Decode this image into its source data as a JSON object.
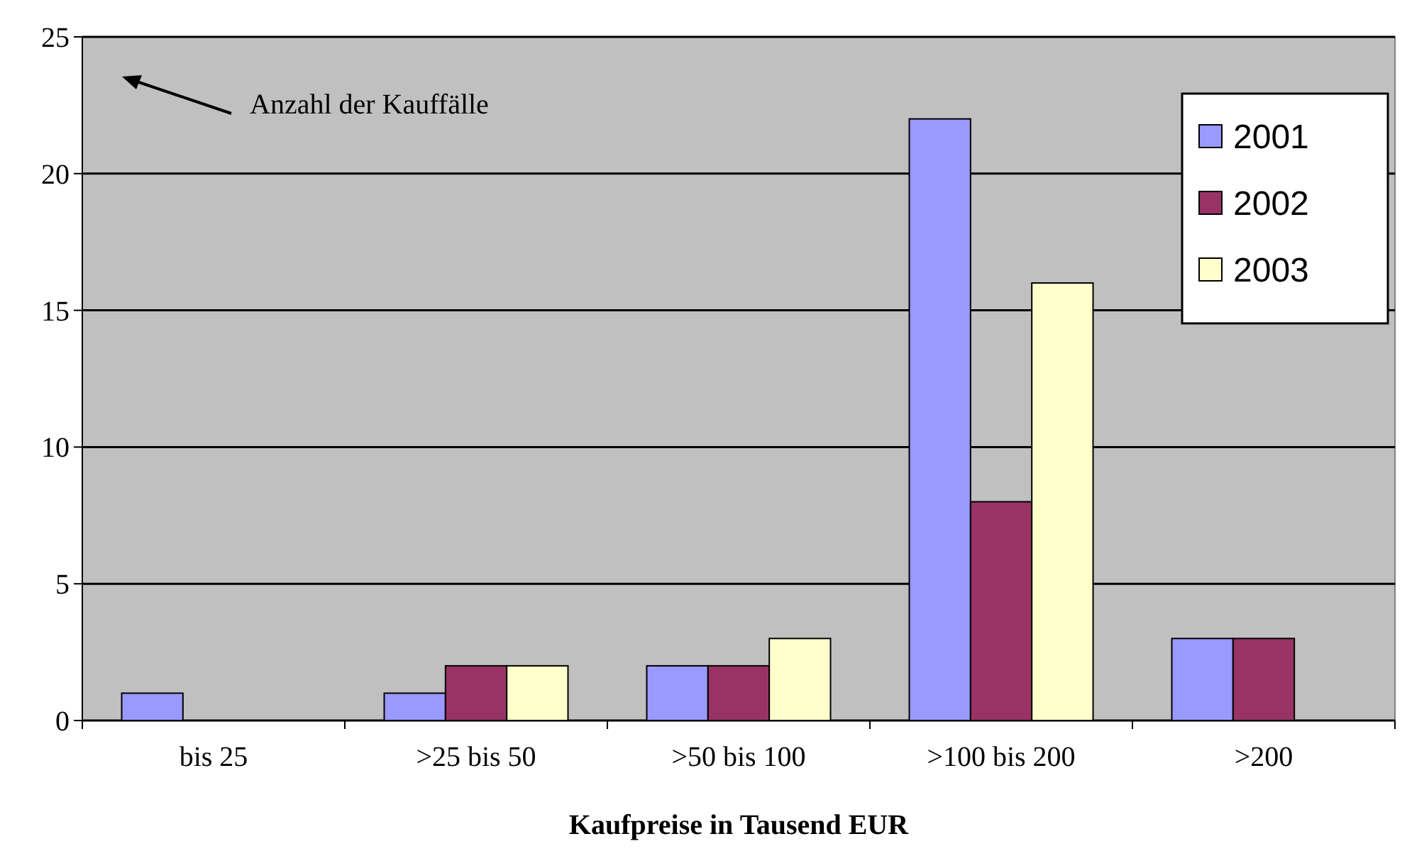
{
  "chart_data": {
    "type": "bar",
    "xlabel": "Kaufpreise in Tausend EUR",
    "categories": [
      "bis 25",
      ">25 bis 50",
      ">50 bis 100",
      ">100 bis 200",
      ">200"
    ],
    "series": [
      {
        "name": "2001",
        "color": "#9999ff",
        "values": [
          1,
          1,
          2,
          22,
          3
        ]
      },
      {
        "name": "2002",
        "color": "#993366",
        "values": [
          0,
          2,
          2,
          8,
          3
        ]
      },
      {
        "name": "2003",
        "color": "#ffffcc",
        "values": [
          0,
          2,
          3,
          16,
          0
        ]
      }
    ],
    "ylim": [
      0,
      25
    ],
    "yticks": [
      0,
      5,
      10,
      15,
      20,
      25
    ],
    "grid": "y",
    "legend": "top right",
    "annotations": [
      "Anzahl der Kauffälle"
    ]
  }
}
